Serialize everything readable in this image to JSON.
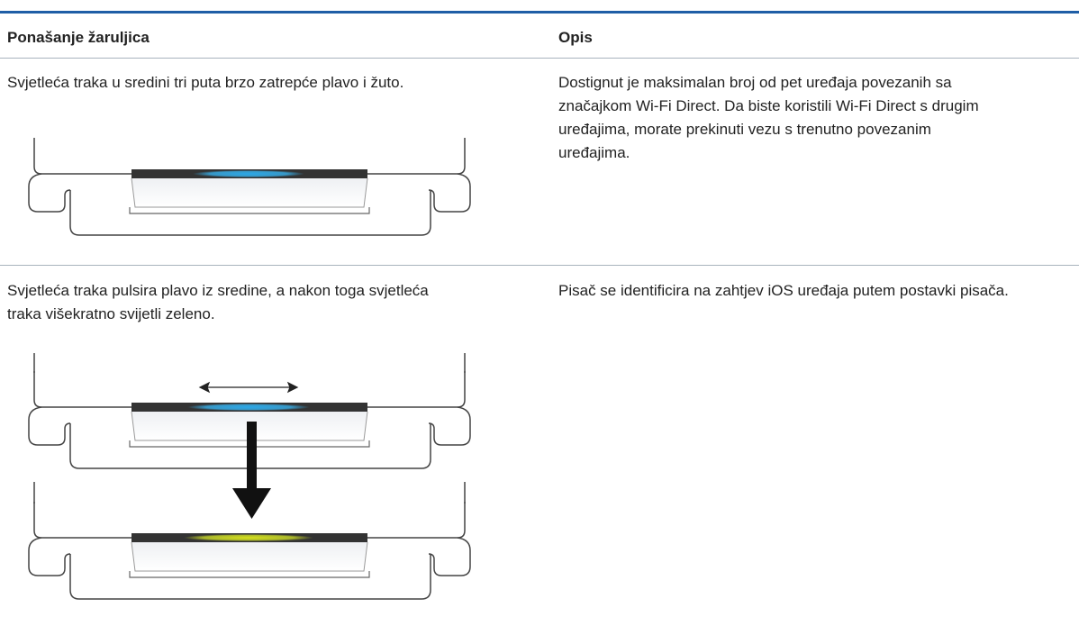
{
  "table": {
    "headers": [
      "Ponašanje žaruljica",
      "Opis"
    ],
    "rows": [
      {
        "behavior": [
          "Svjetleća traka u sredini tri puta brzo zatrepće plavo i žuto."
        ],
        "description": [
          "Dostignut je maksimalan broj od pet uređaja povezanih sa",
          "značajkom Wi-Fi Direct. Da biste koristili Wi-Fi Direct s drugim",
          "uređajima, morate prekinuti vezu s trenutno povezanim",
          "uređajima."
        ]
      },
      {
        "behavior": [
          "Svjetleća traka pulsira plavo iz sredine, a nakon toga svjetleća",
          "traka višekratno svijetli zeleno."
        ],
        "description": [
          "Pisač se identificira na zahtjev iOS uređaja putem postavki pisača."
        ]
      }
    ]
  }
}
